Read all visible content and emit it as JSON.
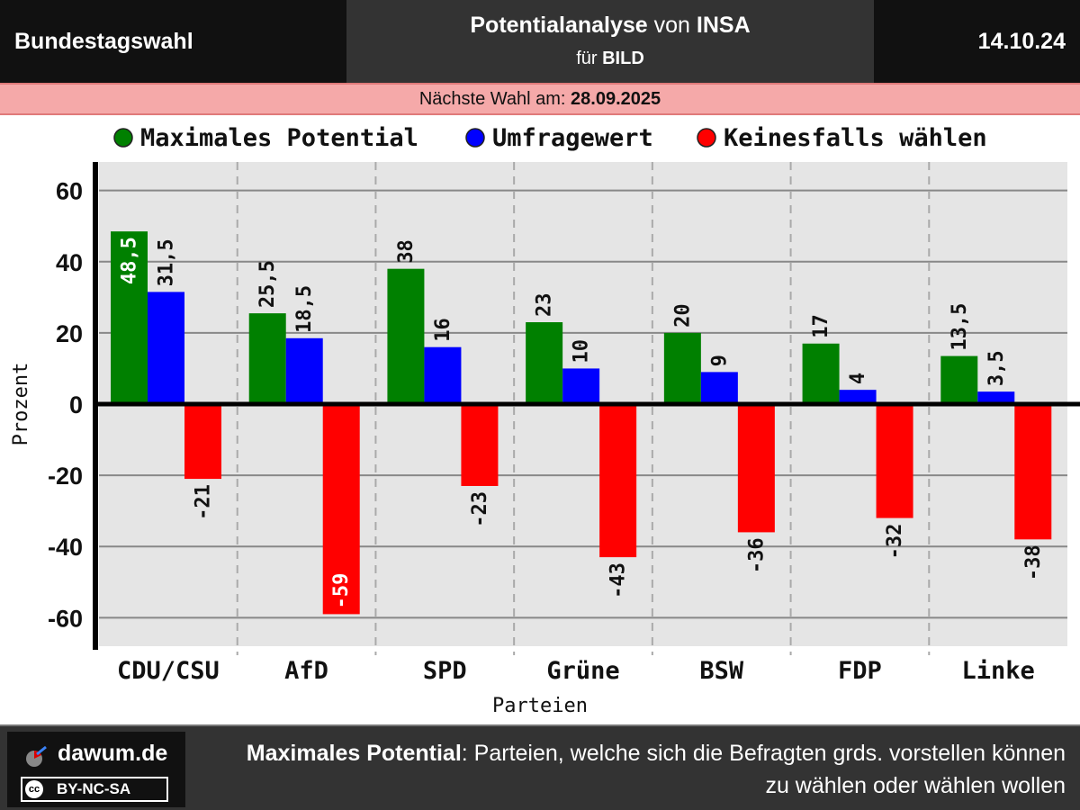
{
  "header": {
    "left_label": "Bundestagswahl",
    "title_bold": "Potentialanalyse",
    "title_mid": " von ",
    "title_institute": "INSA",
    "subtitle_prefix": "für ",
    "subtitle_client": "BILD",
    "date": "14.10.24"
  },
  "election": {
    "prefix": "Nächste Wahl am: ",
    "date": "28.09.2025"
  },
  "colors": {
    "max": "#008000",
    "umfrage": "#0000ff",
    "keinesfalls": "#ff0000",
    "plot_bg": "#e5e5e5"
  },
  "chart_data": {
    "type": "bar",
    "xlabel": "Parteien",
    "ylabel": "Prozent",
    "ylim": [
      -68,
      68
    ],
    "yticks": [
      60,
      40,
      20,
      0,
      -20,
      -40,
      -60
    ],
    "legend_position": "top",
    "grid": true,
    "categories": [
      "CDU/CSU",
      "AfD",
      "SPD",
      "Grüne",
      "BSW",
      "FDP",
      "Linke"
    ],
    "series": [
      {
        "name": "Maximales Potential",
        "values": [
          48.5,
          25.5,
          38,
          23,
          20,
          17,
          13.5
        ]
      },
      {
        "name": "Umfragewert",
        "values": [
          31.5,
          18.5,
          16,
          10,
          9,
          4,
          3.5
        ]
      },
      {
        "name": "Keinesfalls wählen",
        "values": [
          -21,
          -59,
          -23,
          -43,
          -36,
          -32,
          -38
        ]
      }
    ]
  },
  "footer": {
    "site": "dawum.de",
    "license": "BY-NC-SA",
    "cc_mark": "cc",
    "note_bold": "Maximales Potential",
    "note_rest": ": Parteien, welche sich die Befragten grds. vorstellen können zu wählen oder wählen wollen"
  }
}
